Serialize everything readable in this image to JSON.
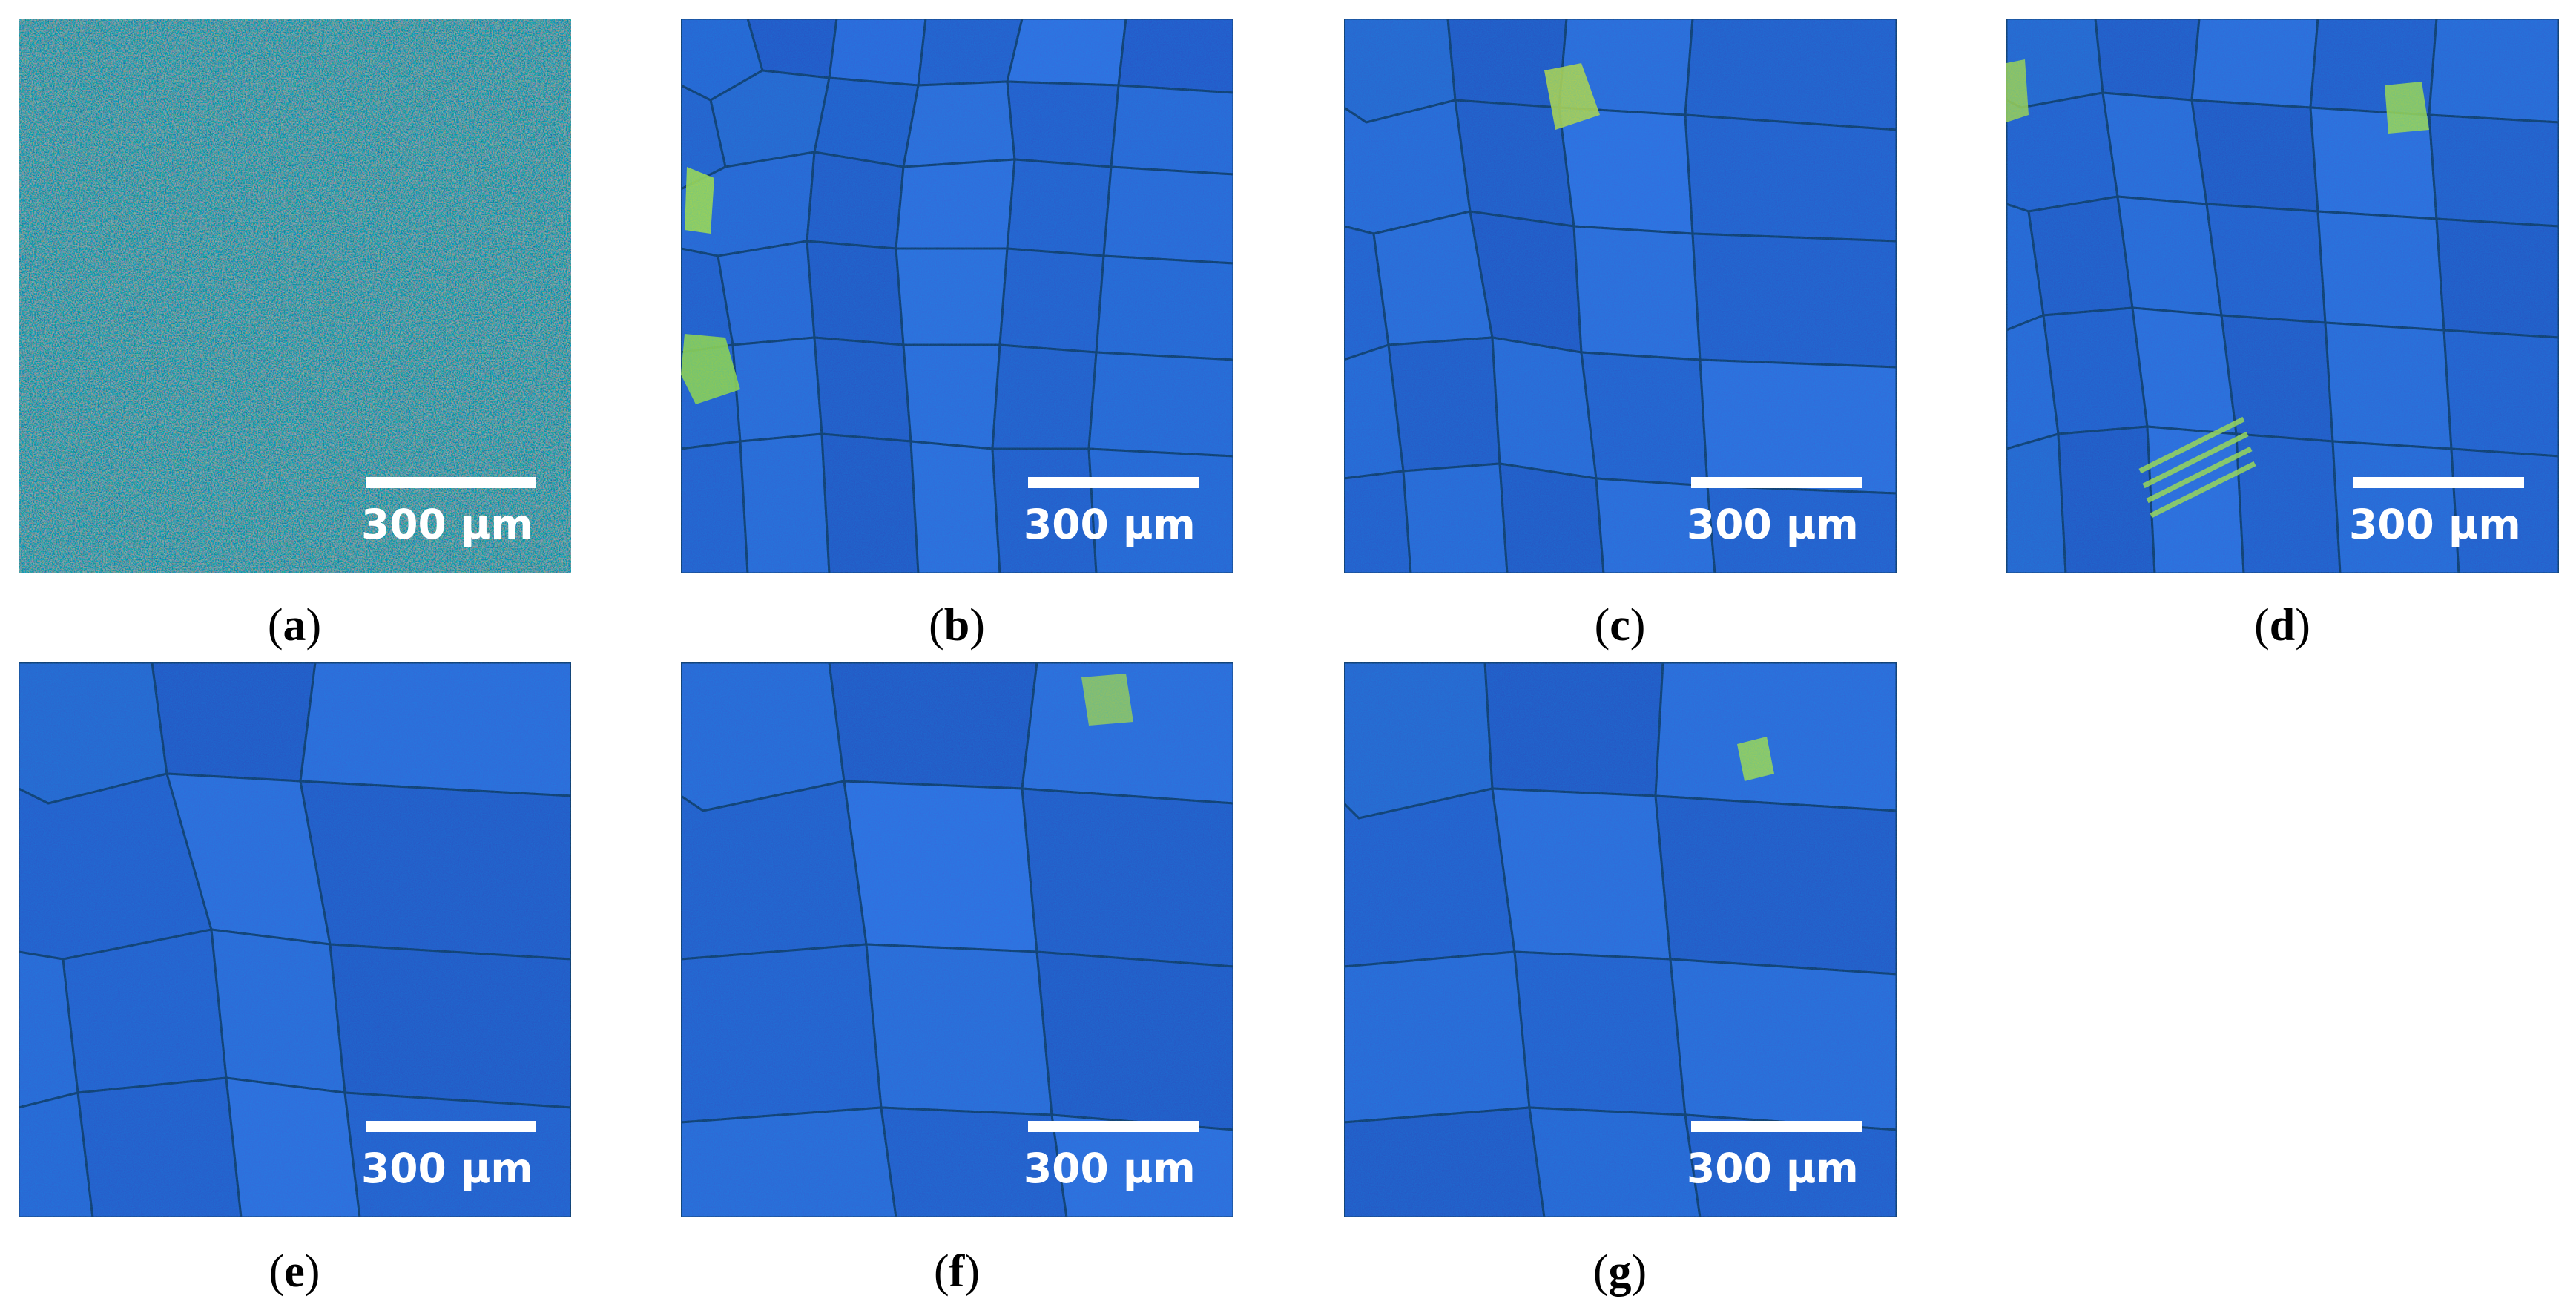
{
  "colors": {
    "background": "#ffffff",
    "grain_blue": "#2f55d6",
    "grain_teal": "#2c7a8a",
    "grain_green": "#3fa35a",
    "grain_yellow": "#c8e33a",
    "grain_red": "#a82233",
    "scalebar": "#ffffff"
  },
  "panels": [
    {
      "id": "a",
      "scalebar_label": "300 µm",
      "texture": "fine-noise-red-teal"
    },
    {
      "id": "b",
      "scalebar_label": "300 µm",
      "texture": "small-grains-blue"
    },
    {
      "id": "c",
      "scalebar_label": "300 µm",
      "texture": "medium-grains-blue"
    },
    {
      "id": "d",
      "scalebar_label": "300 µm",
      "texture": "medium-grains-blue-twins"
    },
    {
      "id": "e",
      "scalebar_label": "300 µm",
      "texture": "large-grains-blue"
    },
    {
      "id": "f",
      "scalebar_label": "300 µm",
      "texture": "large-grains-blue"
    },
    {
      "id": "g",
      "scalebar_label": "300 µm",
      "texture": "large-grains-blue"
    }
  ],
  "captions": [
    {
      "open": "(",
      "letter": "a",
      "close": ")"
    },
    {
      "open": "(",
      "letter": "b",
      "close": ")"
    },
    {
      "open": "(",
      "letter": "c",
      "close": ")"
    },
    {
      "open": "(",
      "letter": "d",
      "close": ")"
    },
    {
      "open": "(",
      "letter": "e",
      "close": ")"
    },
    {
      "open": "(",
      "letter": "f",
      "close": ")"
    },
    {
      "open": "(",
      "letter": "g",
      "close": ")"
    }
  ]
}
